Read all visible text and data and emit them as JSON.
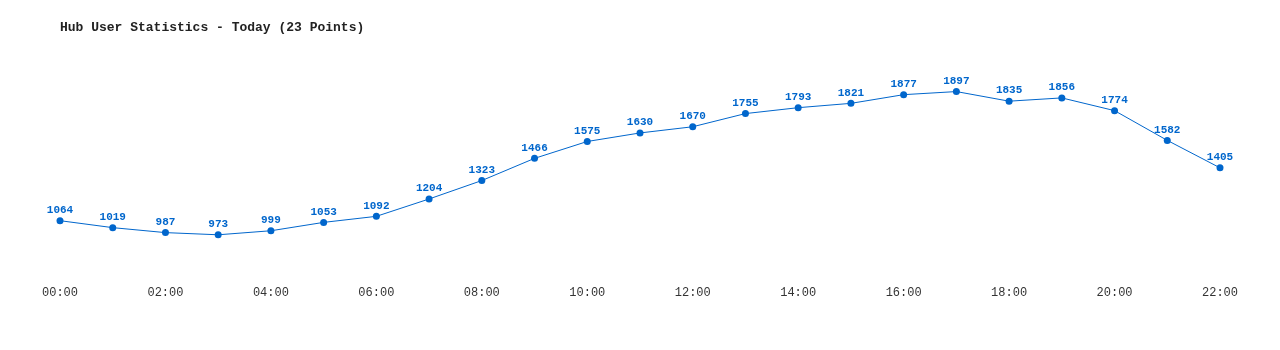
{
  "chart_data": {
    "type": "line",
    "title": "Hub User Statistics - Today (23 Points)",
    "categories": [
      "00:00",
      null,
      "02:00",
      null,
      "04:00",
      null,
      "06:00",
      null,
      "08:00",
      null,
      "10:00",
      null,
      "12:00",
      null,
      "14:00",
      null,
      "16:00",
      null,
      "18:00",
      null,
      "20:00",
      null,
      "22:00"
    ],
    "series": [
      {
        "color": "#0066cc",
        "values": [
          1064,
          1019,
          987,
          973,
          999,
          1053,
          1092,
          1204,
          1323,
          1466,
          1575,
          1630,
          1670,
          1755,
          1793,
          1821,
          1877,
          1897,
          1835,
          1856,
          1774,
          1582,
          1405
        ]
      }
    ],
    "data_labels": true,
    "grid": false,
    "legend": false,
    "marker": "circle",
    "line_style": "solid"
  }
}
